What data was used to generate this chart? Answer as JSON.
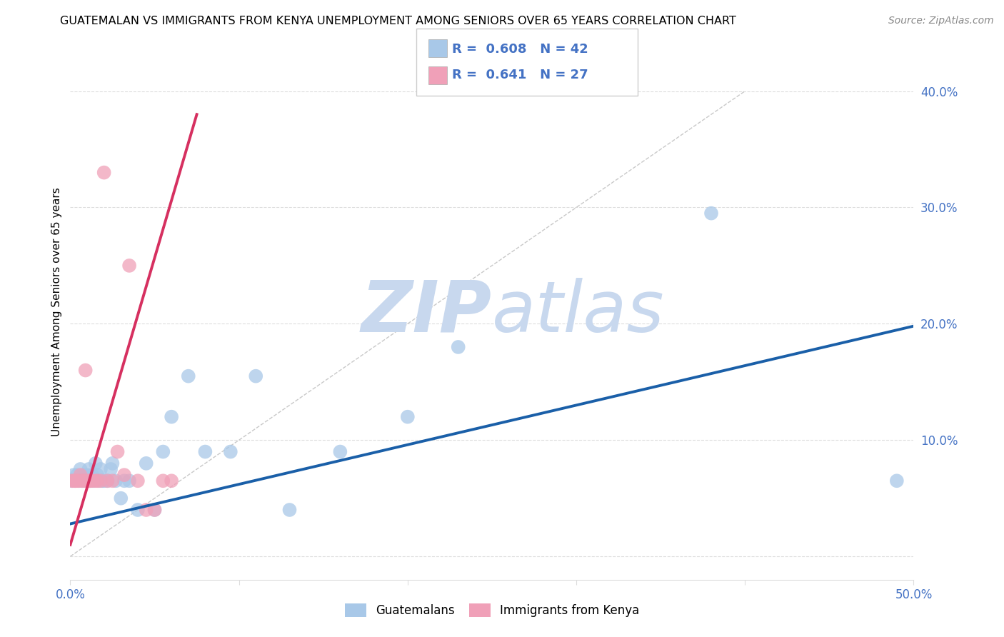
{
  "title": "GUATEMALAN VS IMMIGRANTS FROM KENYA UNEMPLOYMENT AMONG SENIORS OVER 65 YEARS CORRELATION CHART",
  "source": "Source: ZipAtlas.com",
  "ylabel": "Unemployment Among Seniors over 65 years",
  "xlim": [
    0,
    0.5
  ],
  "ylim": [
    -0.02,
    0.44
  ],
  "xticks": [
    0.0,
    0.1,
    0.2,
    0.3,
    0.4,
    0.5
  ],
  "xtick_labels": [
    "0.0%",
    "",
    "",
    "",
    "",
    "50.0%"
  ],
  "yticks": [
    0.0,
    0.1,
    0.2,
    0.3,
    0.4
  ],
  "ytick_labels": [
    "",
    "10.0%",
    "20.0%",
    "30.0%",
    "40.0%"
  ],
  "blue_R": 0.608,
  "blue_N": 42,
  "pink_R": 0.641,
  "pink_N": 27,
  "blue_color": "#A8C8E8",
  "pink_color": "#F0A0B8",
  "blue_line_color": "#1A5FA8",
  "pink_line_color": "#D63060",
  "ref_line_color": "#BBBBBB",
  "watermark_zip": "ZIP",
  "watermark_atlas": "atlas",
  "watermark_color": "#C8D8EE",
  "legend1_label": "Guatemalans",
  "legend2_label": "Immigrants from Kenya",
  "blue_scatter_x": [
    0.001,
    0.002,
    0.003,
    0.004,
    0.005,
    0.006,
    0.007,
    0.008,
    0.009,
    0.01,
    0.011,
    0.012,
    0.013,
    0.014,
    0.015,
    0.016,
    0.017,
    0.018,
    0.019,
    0.02,
    0.022,
    0.024,
    0.025,
    0.027,
    0.03,
    0.032,
    0.035,
    0.04,
    0.045,
    0.05,
    0.055,
    0.06,
    0.07,
    0.08,
    0.095,
    0.11,
    0.13,
    0.16,
    0.2,
    0.23,
    0.38,
    0.49
  ],
  "blue_scatter_y": [
    0.065,
    0.07,
    0.065,
    0.07,
    0.065,
    0.075,
    0.065,
    0.07,
    0.065,
    0.07,
    0.075,
    0.065,
    0.07,
    0.065,
    0.08,
    0.07,
    0.065,
    0.075,
    0.065,
    0.065,
    0.065,
    0.075,
    0.08,
    0.065,
    0.05,
    0.065,
    0.065,
    0.04,
    0.08,
    0.04,
    0.09,
    0.12,
    0.155,
    0.09,
    0.09,
    0.155,
    0.04,
    0.09,
    0.12,
    0.18,
    0.295,
    0.065
  ],
  "pink_scatter_x": [
    0.001,
    0.002,
    0.003,
    0.004,
    0.005,
    0.006,
    0.007,
    0.008,
    0.009,
    0.01,
    0.011,
    0.012,
    0.013,
    0.015,
    0.016,
    0.018,
    0.02,
    0.022,
    0.025,
    0.028,
    0.032,
    0.035,
    0.04,
    0.045,
    0.05,
    0.055,
    0.06
  ],
  "pink_scatter_y": [
    0.065,
    0.065,
    0.065,
    0.065,
    0.065,
    0.07,
    0.065,
    0.065,
    0.16,
    0.065,
    0.065,
    0.065,
    0.065,
    0.065,
    0.065,
    0.065,
    0.33,
    0.065,
    0.065,
    0.09,
    0.07,
    0.25,
    0.065,
    0.04,
    0.04,
    0.065,
    0.065
  ],
  "blue_line_x": [
    0.0,
    0.5
  ],
  "blue_line_y": [
    0.028,
    0.198
  ],
  "pink_line_x": [
    0.0,
    0.075
  ],
  "pink_line_y": [
    0.01,
    0.38
  ],
  "ref_line_x": [
    0.0,
    0.4
  ],
  "ref_line_y": [
    0.0,
    0.4
  ],
  "grid_color": "#DDDDDD",
  "spine_color": "#DDDDDD",
  "tick_color": "#4472C4",
  "title_fontsize": 11.5,
  "source_fontsize": 10,
  "axis_label_fontsize": 11,
  "tick_fontsize": 12,
  "legend_fontsize": 13
}
